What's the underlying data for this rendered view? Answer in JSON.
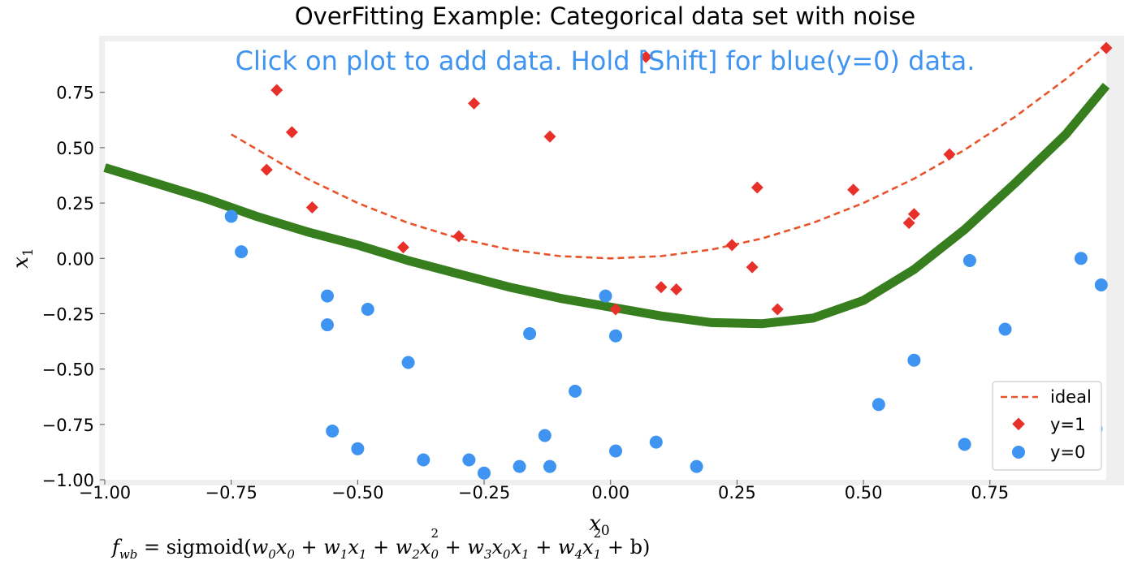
{
  "chart_data": {
    "type": "scatter",
    "title": "OverFitting Example: Categorical data set with noise",
    "instruction": "Click on plot to add data. Hold [Shift] for blue(y=0) data.",
    "xlabel_base": "x",
    "xlabel_sub": "0",
    "ylabel_base": "x",
    "ylabel_sub": "1",
    "xlim": [
      -1.0,
      0.98
    ],
    "ylim": [
      -1.0,
      0.98
    ],
    "xticks": [
      -1.0,
      -0.75,
      -0.5,
      -0.25,
      0.0,
      0.25,
      0.5,
      0.75
    ],
    "yticks": [
      -1.0,
      -0.75,
      -0.5,
      -0.25,
      0.0,
      0.25,
      0.5,
      0.75
    ],
    "xtick_labels": [
      "−1.00",
      "−0.75",
      "−0.50",
      "−0.25",
      "0.00",
      "0.25",
      "0.50",
      "0.75"
    ],
    "ytick_labels": [
      "−1.00",
      "−0.75",
      "−0.50",
      "−0.25",
      "0.00",
      "0.25",
      "0.50",
      "0.75"
    ],
    "grid": false,
    "legend_placement": "lower-right",
    "legend": [
      "ideal",
      "y=1",
      "y=0"
    ],
    "colors": {
      "ideal": "#E8542A",
      "positive": "#E8302A",
      "negative": "#3E94F0",
      "boundary": "#367E1E",
      "instruction": "#3E94F0",
      "frame": "#EFEFEF"
    },
    "series": [
      {
        "name": "y=1",
        "marker": "diamond",
        "points": [
          [
            -0.66,
            0.76
          ],
          [
            -0.27,
            0.7
          ],
          [
            0.07,
            0.91
          ],
          [
            -0.63,
            0.57
          ],
          [
            -0.12,
            0.55
          ],
          [
            -0.68,
            0.4
          ],
          [
            -0.59,
            0.23
          ],
          [
            -0.3,
            0.1
          ],
          [
            -0.41,
            0.05
          ],
          [
            0.29,
            0.32
          ],
          [
            0.48,
            0.31
          ],
          [
            0.67,
            0.47
          ],
          [
            0.6,
            0.2
          ],
          [
            0.59,
            0.16
          ],
          [
            0.24,
            0.06
          ],
          [
            0.28,
            -0.04
          ],
          [
            0.1,
            -0.13
          ],
          [
            0.13,
            -0.14
          ],
          [
            0.01,
            -0.23
          ],
          [
            0.33,
            -0.23
          ],
          [
            0.98,
            0.95
          ]
        ]
      },
      {
        "name": "y=0",
        "marker": "circle",
        "points": [
          [
            -0.75,
            0.19
          ],
          [
            -0.73,
            0.03
          ],
          [
            -0.56,
            -0.17
          ],
          [
            -0.56,
            -0.3
          ],
          [
            -0.48,
            -0.23
          ],
          [
            -0.4,
            -0.47
          ],
          [
            -0.16,
            -0.34
          ],
          [
            -0.01,
            -0.17
          ],
          [
            0.01,
            -0.35
          ],
          [
            -0.07,
            -0.6
          ],
          [
            -0.55,
            -0.78
          ],
          [
            -0.5,
            -0.86
          ],
          [
            -0.37,
            -0.91
          ],
          [
            -0.28,
            -0.91
          ],
          [
            -0.25,
            -0.97
          ],
          [
            -0.18,
            -0.94
          ],
          [
            -0.13,
            -0.8
          ],
          [
            -0.12,
            -0.94
          ],
          [
            0.01,
            -0.87
          ],
          [
            0.09,
            -0.83
          ],
          [
            0.17,
            -0.94
          ],
          [
            0.53,
            -0.66
          ],
          [
            0.6,
            -0.46
          ],
          [
            0.71,
            -0.01
          ],
          [
            0.78,
            -0.32
          ],
          [
            0.7,
            -0.84
          ],
          [
            0.93,
            0.0
          ],
          [
            0.97,
            -0.12
          ],
          [
            0.96,
            -0.77
          ]
        ]
      },
      {
        "name": "ideal",
        "style": "dashed",
        "points": [
          [
            -0.75,
            0.56
          ],
          [
            -0.6,
            0.36
          ],
          [
            -0.5,
            0.25
          ],
          [
            -0.4,
            0.16
          ],
          [
            -0.3,
            0.09
          ],
          [
            -0.2,
            0.04
          ],
          [
            -0.1,
            0.01
          ],
          [
            0.0,
            0.0
          ],
          [
            0.1,
            0.01
          ],
          [
            0.2,
            0.04
          ],
          [
            0.3,
            0.09
          ],
          [
            0.4,
            0.16
          ],
          [
            0.5,
            0.25
          ],
          [
            0.6,
            0.36
          ],
          [
            0.7,
            0.49
          ],
          [
            0.8,
            0.64
          ],
          [
            0.9,
            0.81
          ],
          [
            0.98,
            0.96
          ]
        ]
      },
      {
        "style": "thick-line",
        "points": [
          [
            -1.0,
            0.41
          ],
          [
            -0.9,
            0.34
          ],
          [
            -0.8,
            0.27
          ],
          [
            -0.7,
            0.19
          ],
          [
            -0.6,
            0.12
          ],
          [
            -0.5,
            0.06
          ],
          [
            -0.4,
            -0.01
          ],
          [
            -0.3,
            -0.07
          ],
          [
            -0.2,
            -0.13
          ],
          [
            -0.1,
            -0.18
          ],
          [
            0.0,
            -0.22
          ],
          [
            0.1,
            -0.26
          ],
          [
            0.2,
            -0.29
          ],
          [
            0.3,
            -0.295
          ],
          [
            0.4,
            -0.27
          ],
          [
            0.5,
            -0.19
          ],
          [
            0.6,
            -0.05
          ],
          [
            0.7,
            0.13
          ],
          [
            0.8,
            0.34
          ],
          [
            0.9,
            0.56
          ],
          [
            0.98,
            0.78
          ]
        ]
      }
    ]
  },
  "formula": {
    "f": "f",
    "f_sub": "wb",
    "eq": " = sigmoid(",
    "t1": "w",
    "t1s": "0",
    "t1b": "x",
    "t1bs": "0",
    "t2": " + w",
    "t2s": "1",
    "t2b": "x",
    "t2bs": "1",
    "t3": " + w",
    "t3s": "2",
    "t3b": "x",
    "t3bs": "0",
    "t3p": "2",
    "t4": " + w",
    "t4s": "3",
    "t4b": "x",
    "t4bs": "0",
    "t4c": "x",
    "t4cs": "1",
    "t5": " + w",
    "t5s": "4",
    "t5b": "x",
    "t5bs": "1",
    "t5p": "2",
    "tail": " + b)"
  }
}
